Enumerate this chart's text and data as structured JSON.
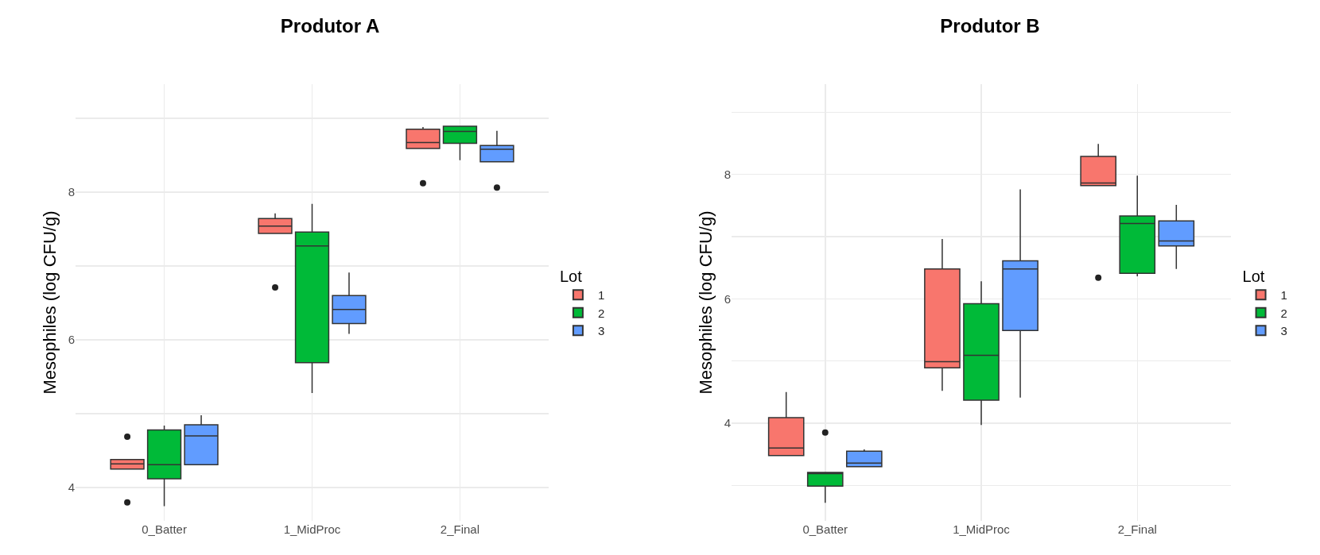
{
  "chart_data": [
    {
      "type": "box",
      "title": "Produtor A",
      "ylabel": "Mesophiles (log CFU/g)",
      "categories": [
        "0_Batter",
        "1_MidProc",
        "2_Final"
      ],
      "legend_title": "Lot",
      "legend": "right",
      "grid": true,
      "ylim": [
        3.55,
        9.46
      ],
      "yticks": [
        4,
        {
          "value": 5,
          "label": null
        },
        6,
        {
          "value": 7,
          "label": null
        },
        8,
        {
          "value": 9,
          "label": null
        }
      ],
      "series": [
        {
          "name": "1",
          "color": "#f8766d",
          "boxes": [
            {
              "low": 4.25,
              "q1": 4.25,
              "median": 4.32,
              "q3": 4.38,
              "high": 4.38,
              "outliers": [
                4.69,
                3.8
              ]
            },
            {
              "low": 7.44,
              "q1": 7.44,
              "median": 7.54,
              "q3": 7.64,
              "high": 7.71,
              "outliers": [
                6.71
              ]
            },
            {
              "low": 8.59,
              "q1": 8.59,
              "median": 8.67,
              "q3": 8.85,
              "high": 8.88,
              "outliers": [
                8.12
              ]
            }
          ]
        },
        {
          "name": "2",
          "color": "#00ba38",
          "boxes": [
            {
              "low": 3.75,
              "q1": 4.12,
              "median": 4.31,
              "q3": 4.78,
              "high": 4.84
            },
            {
              "low": 5.28,
              "q1": 5.69,
              "median": 7.27,
              "q3": 7.46,
              "high": 7.84
            },
            {
              "low": 8.43,
              "q1": 8.66,
              "median": 8.82,
              "q3": 8.89,
              "high": 8.89
            }
          ]
        },
        {
          "name": "3",
          "color": "#619cff",
          "boxes": [
            {
              "low": 4.31,
              "q1": 4.31,
              "median": 4.7,
              "q3": 4.85,
              "high": 4.98
            },
            {
              "low": 6.08,
              "q1": 6.22,
              "median": 6.41,
              "q3": 6.6,
              "high": 6.91
            },
            {
              "low": 8.41,
              "q1": 8.41,
              "median": 8.58,
              "q3": 8.63,
              "high": 8.83,
              "outliers": [
                8.06
              ]
            }
          ]
        }
      ]
    },
    {
      "type": "box",
      "title": "Produtor B",
      "ylabel": "Mesophiles (log CFU/g)",
      "categories": [
        "0_Batter",
        "1_MidProc",
        "2_Final"
      ],
      "legend_title": "Lot",
      "legend": "right",
      "grid": true,
      "ylim": [
        2.43,
        9.45
      ],
      "yticks": [
        {
          "value": 3,
          "label": null
        },
        4,
        {
          "value": 5,
          "label": null
        },
        6,
        {
          "value": 7,
          "label": null
        },
        8,
        {
          "value": 9,
          "label": null
        }
      ],
      "series": [
        {
          "name": "1",
          "color": "#f8766d",
          "boxes": [
            {
              "low": 3.48,
              "q1": 3.48,
              "median": 3.6,
              "q3": 4.09,
              "high": 4.5
            },
            {
              "low": 4.52,
              "q1": 4.89,
              "median": 4.99,
              "q3": 6.48,
              "high": 6.96
            },
            {
              "low": 7.82,
              "q1": 7.82,
              "median": 7.86,
              "q3": 8.29,
              "high": 8.49,
              "outliers": [
                6.34
              ]
            }
          ]
        },
        {
          "name": "2",
          "color": "#00ba38",
          "boxes": [
            {
              "low": 2.72,
              "q1": 2.99,
              "median": 3.19,
              "q3": 3.21,
              "high": 3.21,
              "outliers": [
                3.85
              ]
            },
            {
              "low": 3.97,
              "q1": 4.37,
              "median": 5.09,
              "q3": 5.92,
              "high": 6.28
            },
            {
              "low": 6.36,
              "q1": 6.41,
              "median": 7.21,
              "q3": 7.33,
              "high": 7.98
            }
          ]
        },
        {
          "name": "3",
          "color": "#619cff",
          "boxes": [
            {
              "low": 3.3,
              "q1": 3.3,
              "median": 3.36,
              "q3": 3.55,
              "high": 3.58
            },
            {
              "low": 4.41,
              "q1": 5.49,
              "median": 6.48,
              "q3": 6.61,
              "high": 7.76
            },
            {
              "low": 6.48,
              "q1": 6.85,
              "median": 6.93,
              "q3": 7.25,
              "high": 7.51
            }
          ]
        }
      ]
    }
  ]
}
